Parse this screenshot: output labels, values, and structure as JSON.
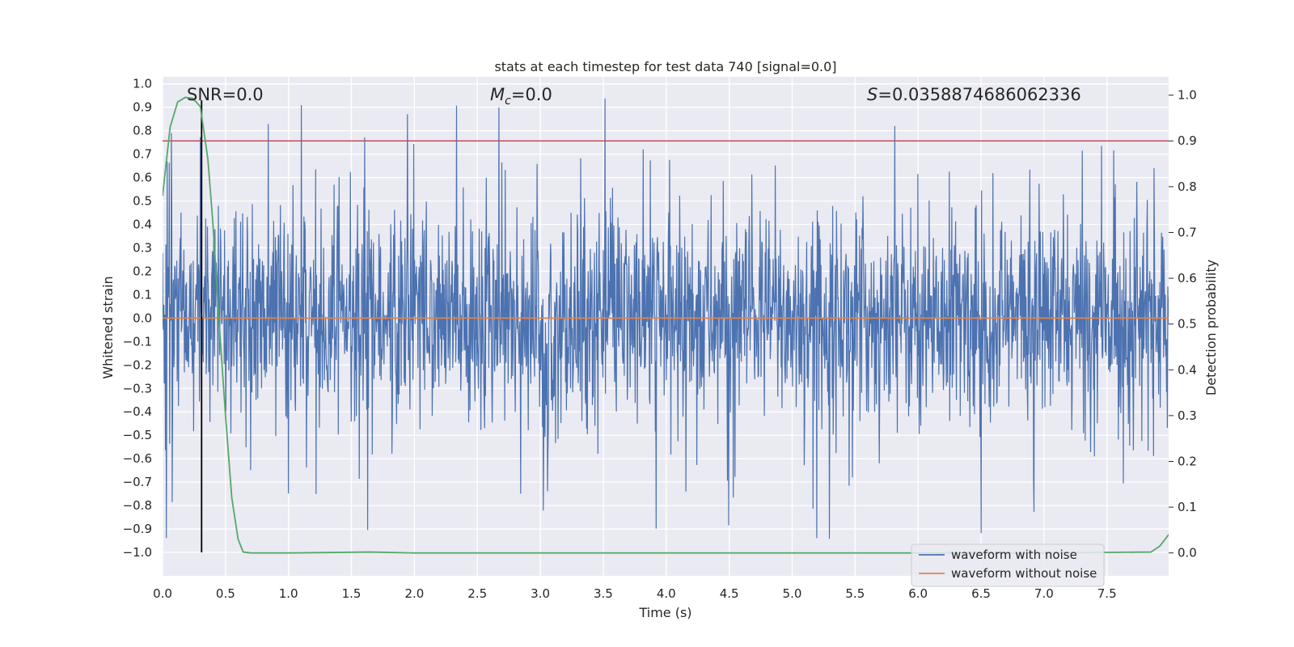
{
  "chart_data": {
    "type": "line",
    "title": "stats at each timestep for test data 740 [signal=0.0]",
    "xlabel": "Time (s)",
    "ylabel": "Whitened strain",
    "y2label": "Detection probability",
    "xlim": [
      0.0,
      7.99
    ],
    "ylim": [
      -1.1,
      1.03
    ],
    "y2lim": [
      -0.05,
      1.04
    ],
    "x_ticks": [
      "0.0",
      "0.5",
      "1.0",
      "1.5",
      "2.0",
      "2.5",
      "3.0",
      "3.5",
      "4.0",
      "4.5",
      "5.0",
      "5.5",
      "6.0",
      "6.5",
      "7.0",
      "7.5"
    ],
    "y_ticks": [
      "1.0",
      "0.9",
      "0.8",
      "0.7",
      "0.6",
      "0.5",
      "0.4",
      "0.3",
      "0.2",
      "0.1",
      "0.0",
      "-0.1",
      "-0.2",
      "-0.3",
      "-0.4",
      "-0.5",
      "-0.6",
      "-0.7",
      "-0.8",
      "-0.9",
      "-1.0"
    ],
    "y2_ticks": [
      "0.0",
      "0.1",
      "0.2",
      "0.3",
      "0.4",
      "0.5",
      "0.6",
      "0.7",
      "0.8",
      "0.9",
      "1.0"
    ],
    "grid": true,
    "legend_position": "bottom-right",
    "annotations": {
      "snr": "SNR=0.0",
      "mc_symbol": "M",
      "mc_sub": "c",
      "mc_value": "=0.0",
      "s_symbol": "S",
      "s_value": "=0.0358874686062336"
    },
    "series": [
      {
        "name": "waveform with noise",
        "color": "#4c72b0",
        "description": "noisy whitened strain, roughly within ±0.5 with spikes to about ±0.95",
        "amplitude_core": 0.22,
        "spike_max": 0.95,
        "x_range": [
          0.0,
          7.99
        ]
      },
      {
        "name": "waveform without noise",
        "color": "#dd8452",
        "x": [
          0.0,
          7.99
        ],
        "y": [
          0.0,
          0.0
        ]
      },
      {
        "name": "detection probability",
        "axis": "right",
        "color": "#55a868",
        "x": [
          0.0,
          0.06,
          0.12,
          0.18,
          0.24,
          0.3,
          0.36,
          0.4,
          0.45,
          0.5,
          0.55,
          0.6,
          0.64,
          0.7,
          1.0,
          1.65,
          2.0,
          7.0,
          7.85,
          7.92,
          7.99
        ],
        "y": [
          0.78,
          0.93,
          0.985,
          0.995,
          0.993,
          0.975,
          0.86,
          0.72,
          0.5,
          0.3,
          0.12,
          0.03,
          0.002,
          0.0,
          0.0,
          0.002,
          0.0,
          0.0,
          0.002,
          0.015,
          0.04
        ]
      }
    ],
    "threshold": {
      "axis": "right",
      "value": 0.9,
      "color": "#c44e52"
    },
    "marker_line": {
      "x": 0.31,
      "y_from": -1.0,
      "y_to": 0.93,
      "color": "#000000"
    }
  }
}
